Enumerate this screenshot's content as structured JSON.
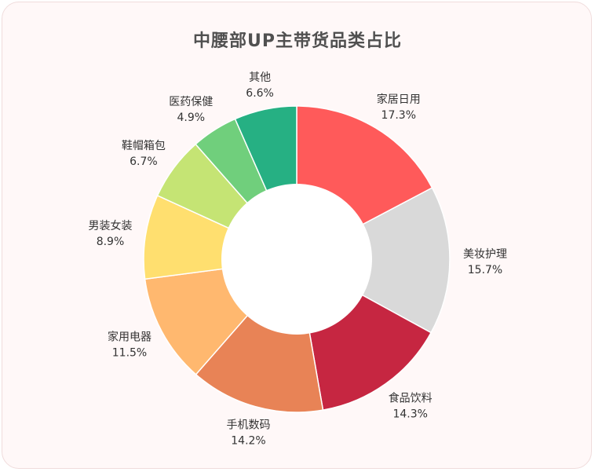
{
  "chart_data": {
    "type": "pie",
    "donut": true,
    "title": "中腰部UP主带货品类占比",
    "slices": [
      {
        "label": "家居日用",
        "value": 17.3,
        "display": "17.3%",
        "color": "#ff5a5a"
      },
      {
        "label": "美妆护理",
        "value": 15.7,
        "display": "15.7%",
        "color": "#d9d9d9"
      },
      {
        "label": "食品饮料",
        "value": 14.3,
        "display": "14.3%",
        "color": "#c62641"
      },
      {
        "label": "手机数码",
        "value": 14.2,
        "display": "14.2%",
        "color": "#e88356"
      },
      {
        "label": "家用电器",
        "value": 11.5,
        "display": "11.5%",
        "color": "#ffb86f"
      },
      {
        "label": "男装女装",
        "value": 8.9,
        "display": "8.9%",
        "color": "#ffdf6f"
      },
      {
        "label": "鞋帽箱包",
        "value": 6.7,
        "display": "6.7%",
        "color": "#c5e474"
      },
      {
        "label": "医药保健",
        "value": 4.9,
        "display": "4.9%",
        "color": "#70cf7c"
      },
      {
        "label": "其他",
        "value": 6.6,
        "display": "6.6%",
        "color": "#26b083"
      }
    ],
    "start_angle": "12 o'clock",
    "direction": "clockwise",
    "legend": "none"
  }
}
